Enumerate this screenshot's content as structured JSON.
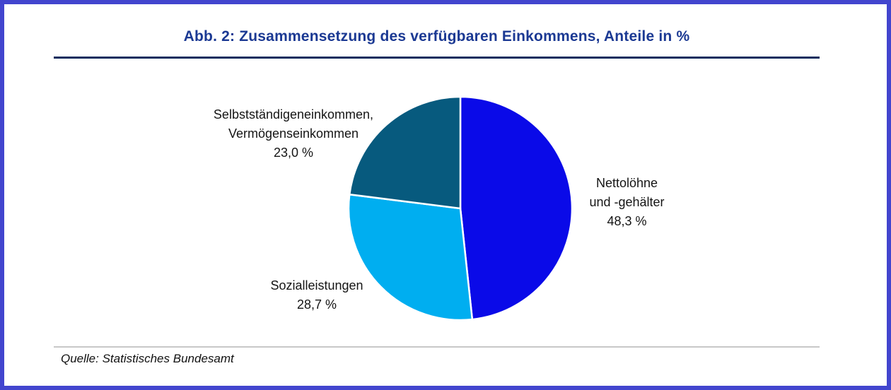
{
  "frame": {
    "border_color": "#4245CE"
  },
  "header": {
    "title": "Abb. 2: Zusammensetzung des verfügbaren Einkommens, Anteile in %",
    "title_color": "#1B3993",
    "underline_color": "#0F2D5E"
  },
  "chart_data": {
    "type": "pie",
    "title": "Abb. 2: Zusammensetzung des verfügbaren Einkommens, Anteile in %",
    "unit": "%",
    "start_angle_deg": 0,
    "direction": "clockwise",
    "slice_border_color": "#ffffff",
    "slices": [
      {
        "label": "Nettolöhne und -gehälter",
        "value": 48.3,
        "display": "Nettolöhne\nund -gehälter\n48,3 %",
        "color": "#0A0AE8"
      },
      {
        "label": "Sozialleistungen",
        "value": 28.7,
        "display": "Sozialleistungen\n28,7 %",
        "color": "#00AEF0"
      },
      {
        "label": "Selbstständigeneinkommen, Vermögenseinkommen",
        "value": 23.0,
        "display": "Selbstständigeneinkommen,\nVermögenseinkommen\n23,0 %",
        "color": "#075A7E"
      }
    ]
  },
  "footer": {
    "source": "Quelle: Statistisches Bundesamt"
  }
}
